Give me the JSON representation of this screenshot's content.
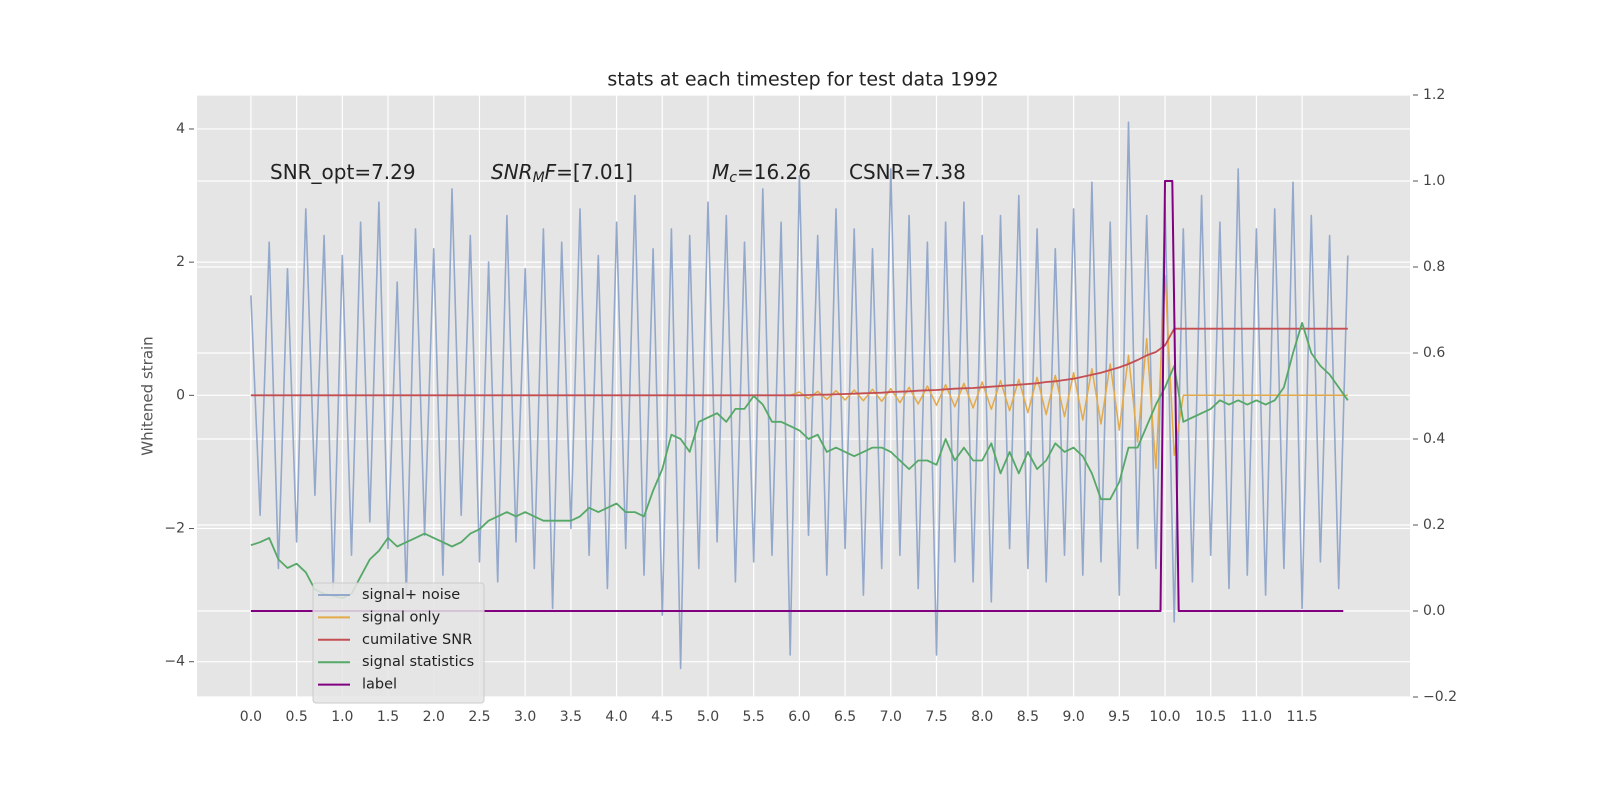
{
  "chart_data": {
    "type": "line",
    "title": "stats at each timestep for test data 1992",
    "ylabel": "Whitened strain",
    "xlim": [
      -0.59,
      12.68
    ],
    "ylim": [
      -4.53,
      4.51
    ],
    "y2lim": [
      -0.2,
      1.2
    ],
    "grid": true,
    "legend": "lower left",
    "xticks": [
      {
        "value": 0,
        "label": "0.0"
      },
      0.5,
      {
        "value": 1,
        "label": "1.0"
      },
      1.5,
      {
        "value": 2,
        "label": "2.0"
      },
      2.5,
      {
        "value": 3,
        "label": "3.0"
      },
      3.5,
      {
        "value": 4,
        "label": "4.0"
      },
      4.5,
      {
        "value": 5,
        "label": "5.0"
      },
      5.5,
      {
        "value": 6,
        "label": "6.0"
      },
      6.5,
      {
        "value": 7,
        "label": "7.0"
      },
      7.5,
      {
        "value": 8,
        "label": "8.0"
      },
      8.5,
      {
        "value": 9,
        "label": "9.0"
      },
      9.5,
      {
        "value": 10,
        "label": "10.0"
      },
      10.5,
      {
        "value": 11,
        "label": "11.0"
      },
      11.5
    ],
    "yticks": [
      {
        "value": -4,
        "label": "−4"
      },
      {
        "value": -2,
        "label": "−2"
      },
      0,
      2,
      4
    ],
    "y2ticks": [
      {
        "value": -0.2,
        "label": "−0.2"
      },
      {
        "value": 0,
        "label": "0.0"
      },
      0.2,
      0.4,
      0.6,
      0.8,
      {
        "value": 1,
        "label": "1.0"
      },
      1.2
    ],
    "annotations": [
      {
        "parts": [
          {
            "text": "SNR_opt=7.29",
            "style": "normal"
          }
        ]
      },
      {
        "parts": [
          {
            "text": "SNR",
            "style": "italic"
          },
          {
            "text": "M",
            "style": "sub"
          },
          {
            "text": "F",
            "style": "italic"
          },
          {
            "text": "=[7.01]",
            "style": "normal"
          }
        ]
      },
      {
        "parts": [
          {
            "text": "M",
            "style": "italic"
          },
          {
            "text": "c",
            "style": "sub"
          },
          {
            "text": "=16.26",
            "style": "normal"
          }
        ]
      },
      {
        "parts": [
          {
            "text": "CSNR=7.38",
            "style": "normal"
          }
        ]
      }
    ],
    "x": [
      0.0,
      0.1,
      0.2,
      0.3,
      0.4,
      0.5,
      0.6,
      0.7,
      0.8,
      0.9,
      1.0,
      1.1,
      1.2,
      1.3,
      1.4,
      1.5,
      1.6,
      1.7,
      1.8,
      1.9,
      2.0,
      2.1,
      2.2,
      2.3,
      2.4,
      2.5,
      2.6,
      2.7,
      2.8,
      2.9,
      3.0,
      3.1,
      3.2,
      3.3,
      3.4,
      3.5,
      3.6,
      3.7,
      3.8,
      3.9,
      4.0,
      4.1,
      4.2,
      4.3,
      4.4,
      4.5,
      4.6,
      4.7,
      4.8,
      4.9,
      5.0,
      5.1,
      5.2,
      5.3,
      5.4,
      5.5,
      5.6,
      5.7,
      5.8,
      5.9,
      6.0,
      6.1,
      6.2,
      6.3,
      6.4,
      6.5,
      6.6,
      6.7,
      6.8,
      6.9,
      7.0,
      7.1,
      7.2,
      7.3,
      7.4,
      7.5,
      7.6,
      7.7,
      7.8,
      7.9,
      8.0,
      8.1,
      8.2,
      8.3,
      8.4,
      8.5,
      8.6,
      8.7,
      8.8,
      8.9,
      9.0,
      9.1,
      9.2,
      9.3,
      9.4,
      9.5,
      9.6,
      9.7,
      9.8,
      9.9,
      10.0,
      10.1,
      10.2,
      10.3,
      10.4,
      10.5,
      10.6,
      10.7,
      10.8,
      10.9,
      11.0,
      11.1,
      11.2,
      11.3,
      11.4,
      11.5,
      11.6,
      11.7,
      11.8,
      11.9,
      12.0
    ],
    "series": [
      {
        "name": "signal+ noise",
        "color": "#93a8cb",
        "axis": "y",
        "values": [
          1.5,
          -1.8,
          2.3,
          -2.6,
          1.9,
          -2.2,
          2.8,
          -1.5,
          2.4,
          -2.9,
          2.1,
          -2.4,
          2.6,
          -1.9,
          2.9,
          -2.3,
          1.7,
          -3.0,
          2.5,
          -2.1,
          2.2,
          -2.7,
          3.1,
          -1.8,
          2.4,
          -2.5,
          2.0,
          -2.8,
          2.7,
          -2.2,
          1.9,
          -2.6,
          2.5,
          -3.2,
          2.3,
          -2.0,
          2.8,
          -2.4,
          2.1,
          -2.9,
          2.6,
          -2.3,
          3.0,
          -2.7,
          2.2,
          -3.3,
          2.5,
          -4.1,
          2.4,
          -2.6,
          2.9,
          -2.2,
          2.7,
          -2.8,
          2.3,
          -2.5,
          3.1,
          -2.4,
          2.6,
          -3.9,
          3.3,
          -2.1,
          2.4,
          -2.7,
          2.8,
          -2.3,
          2.5,
          -3.0,
          2.2,
          -2.6,
          3.4,
          -2.4,
          2.7,
          -2.9,
          2.3,
          -3.9,
          2.6,
          -2.5,
          2.9,
          -2.8,
          2.4,
          -3.1,
          2.7,
          -2.3,
          3.0,
          -2.6,
          2.5,
          -2.8,
          2.2,
          -2.4,
          2.8,
          -2.7,
          3.2,
          -2.5,
          2.6,
          -3.0,
          4.1,
          -2.3,
          2.7,
          -2.6,
          2.9,
          -3.4,
          2.5,
          -2.8,
          3.0,
          -2.4,
          2.6,
          -2.9,
          3.4,
          -2.7,
          2.5,
          -3.0,
          2.8,
          -2.6,
          3.2,
          -3.2,
          2.7,
          -2.5,
          2.4,
          -2.9,
          2.1
        ]
      },
      {
        "name": "signal only",
        "color": "#e3aa4a",
        "axis": "y",
        "values": [
          0,
          0,
          0,
          0,
          0,
          0,
          0,
          0,
          0,
          0,
          0,
          0,
          0,
          0,
          0,
          0,
          0,
          0,
          0,
          0,
          0,
          0,
          0,
          0,
          0,
          0,
          0,
          0,
          0,
          0,
          0,
          0,
          0,
          0,
          0,
          0,
          0,
          0,
          0,
          0,
          0,
          0,
          0,
          0,
          0,
          0,
          0,
          0,
          0,
          0,
          0,
          0,
          0,
          0,
          0,
          0,
          0,
          0,
          0,
          0,
          0.05,
          -0.05,
          0.06,
          -0.06,
          0.07,
          -0.07,
          0.08,
          -0.08,
          0.09,
          -0.09,
          0.1,
          -0.11,
          0.12,
          -0.13,
          0.14,
          -0.15,
          0.16,
          -0.17,
          0.18,
          -0.19,
          0.2,
          -0.21,
          0.22,
          -0.23,
          0.24,
          -0.26,
          0.27,
          -0.29,
          0.3,
          -0.32,
          0.34,
          -0.37,
          0.4,
          -0.43,
          0.47,
          -0.52,
          0.6,
          -0.7,
          0.85,
          -1.1,
          1.8,
          -0.9,
          0,
          0,
          0,
          0,
          0,
          0,
          0,
          0,
          0,
          0,
          0,
          0,
          0,
          0,
          0,
          0,
          0,
          0,
          0
        ]
      },
      {
        "name": "cumilative SNR",
        "color": "#c44e52",
        "axis": "y",
        "values": [
          0,
          0,
          0,
          0,
          0,
          0,
          0,
          0,
          0,
          0,
          0,
          0,
          0,
          0,
          0,
          0,
          0,
          0,
          0,
          0,
          0,
          0,
          0,
          0,
          0,
          0,
          0,
          0,
          0,
          0,
          0,
          0,
          0,
          0,
          0,
          0,
          0,
          0,
          0,
          0,
          0,
          0,
          0,
          0,
          0,
          0,
          0,
          0,
          0,
          0,
          0,
          0,
          0,
          0,
          0,
          0,
          0,
          0,
          0,
          0,
          0,
          0.005,
          0.01,
          0.01,
          0.015,
          0.02,
          0.025,
          0.03,
          0.035,
          0.04,
          0.05,
          0.055,
          0.06,
          0.07,
          0.075,
          0.08,
          0.09,
          0.1,
          0.105,
          0.11,
          0.12,
          0.13,
          0.14,
          0.15,
          0.16,
          0.17,
          0.18,
          0.2,
          0.21,
          0.23,
          0.25,
          0.28,
          0.31,
          0.34,
          0.38,
          0.42,
          0.47,
          0.53,
          0.6,
          0.65,
          0.75,
          1.0,
          1.0,
          1.0,
          1.0,
          1.0,
          1.0,
          1.0,
          1.0,
          1.0,
          1.0,
          1.0,
          1.0,
          1.0,
          1.0,
          1.0,
          1.0,
          1.0,
          1.0,
          1.0,
          1.0
        ]
      },
      {
        "name": "signal statistics",
        "color": "#55a868",
        "axis": "y2",
        "values": [
          0.153,
          0.16,
          0.17,
          0.12,
          0.1,
          0.11,
          0.09,
          0.05,
          0.04,
          0.035,
          0.03,
          0.04,
          0.08,
          0.12,
          0.14,
          0.17,
          0.15,
          0.16,
          0.17,
          0.18,
          0.17,
          0.16,
          0.15,
          0.16,
          0.18,
          0.19,
          0.21,
          0.22,
          0.23,
          0.22,
          0.23,
          0.22,
          0.21,
          0.21,
          0.21,
          0.21,
          0.22,
          0.24,
          0.23,
          0.24,
          0.25,
          0.23,
          0.23,
          0.22,
          0.28,
          0.33,
          0.41,
          0.4,
          0.37,
          0.44,
          0.45,
          0.46,
          0.44,
          0.47,
          0.47,
          0.5,
          0.48,
          0.44,
          0.44,
          0.43,
          0.42,
          0.4,
          0.41,
          0.37,
          0.38,
          0.37,
          0.36,
          0.37,
          0.38,
          0.38,
          0.37,
          0.35,
          0.33,
          0.35,
          0.35,
          0.34,
          0.4,
          0.35,
          0.38,
          0.35,
          0.35,
          0.39,
          0.32,
          0.37,
          0.32,
          0.37,
          0.33,
          0.35,
          0.39,
          0.37,
          0.38,
          0.36,
          0.32,
          0.26,
          0.26,
          0.3,
          0.38,
          0.38,
          0.43,
          0.48,
          0.52,
          0.57,
          0.44,
          0.45,
          0.46,
          0.47,
          0.49,
          0.48,
          0.49,
          0.48,
          0.49,
          0.48,
          0.49,
          0.52,
          0.6,
          0.67,
          0.6,
          0.57,
          0.55,
          0.52,
          0.49
        ]
      },
      {
        "name": "label",
        "color": "#800080",
        "axis": "y2",
        "x": [
          0,
          9.95,
          10.0,
          10.08,
          10.15,
          11.95
        ],
        "values": [
          0,
          0,
          1,
          1,
          0,
          0
        ]
      }
    ]
  }
}
